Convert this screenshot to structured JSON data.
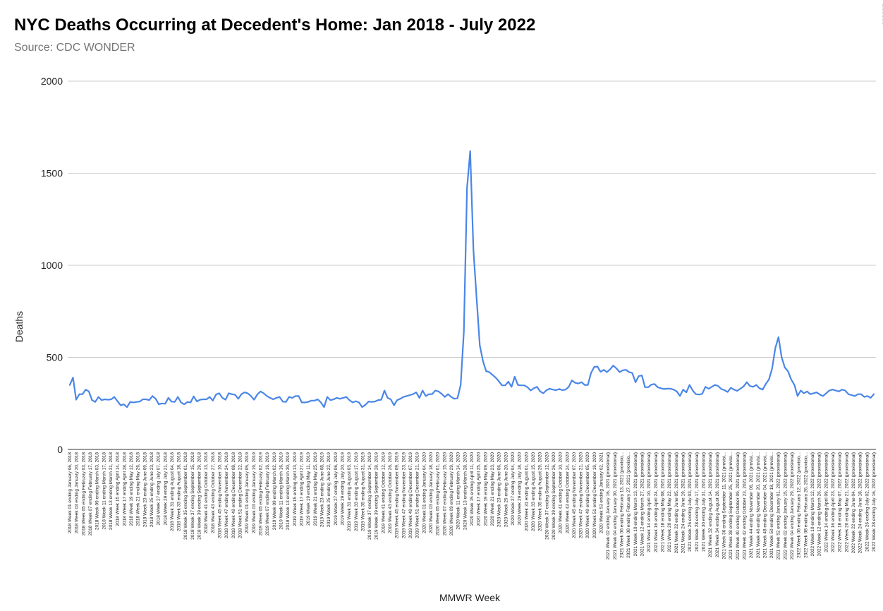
{
  "chart_data": {
    "type": "line",
    "title": "NYC Deaths Occurring at Decedent's Home: Jan 2018 - July 2022",
    "subtitle": "Source: CDC WONDER",
    "xlabel": "MMWR Week",
    "ylabel": "Deaths",
    "ylim": [
      0,
      2000
    ],
    "yticks": [
      0,
      500,
      1000,
      1500,
      2000
    ],
    "grid": true,
    "legend": "none",
    "line_color": "#4a86e8",
    "x_tick_labels": [
      "2018 Week 01 ending January 06, 2018",
      "2018 Week 03 ending January 20, 2018",
      "2018 Week 05 ending February 03, 2018",
      "2018 Week 07 ending February 17, 2018",
      "2018 Week 09 ending March 03, 2018",
      "2018 Week 11 ending March 17, 2018",
      "2018 Week 13 ending March 31, 2018",
      "2018 Week 15 ending April 14, 2018",
      "2018 Week 17 ending April 28, 2018",
      "2018 Week 19 ending May 12, 2018",
      "2018 Week 21 ending May 26, 2018",
      "2018 Week 23 ending June 09, 2018",
      "2018 Week 25 ending June 23, 2018",
      "2018 Week 27 ending July 07, 2018",
      "2018 Week 29 ending July 21, 2018",
      "2018 Week 31 ending August 04, 2018",
      "2018 Week 33 ending August 18, 2018",
      "2018 Week 35 ending September 01, 2018",
      "2018 Week 37 ending September 15, 2018",
      "2018 Week 39 ending September 29, 2018",
      "2018 Week 41 ending October 13, 2018",
      "2018 Week 43 ending October 27, 2018",
      "2018 Week 45 ending November 10, 2018",
      "2018 Week 47 ending November 24, 2018",
      "2018 Week 49 ending December 08, 2018",
      "2018 Week 51 ending December 22, 2018",
      "2019 Week 01 ending January 05, 2019",
      "2019 Week 03 ending January 19, 2019",
      "2019 Week 05 ending February 02, 2019",
      "2019 Week 07 ending February 16, 2019",
      "2019 Week 09 ending March 02, 2019",
      "2019 Week 11 ending March 16, 2019",
      "2019 Week 13 ending March 30, 2019",
      "2019 Week 15 ending April 13, 2019",
      "2019 Week 17 ending April 27, 2019",
      "2019 Week 19 ending May 11, 2019",
      "2019 Week 21 ending May 25, 2019",
      "2019 Week 23 ending June 08, 2019",
      "2019 Week 25 ending June 22, 2019",
      "2019 Week 27 ending July 06, 2019",
      "2019 Week 29 ending July 20, 2019",
      "2019 Week 31 ending August 03, 2019",
      "2019 Week 33 ending August 17, 2019",
      "2019 Week 35 ending August 31, 2019",
      "2019 Week 37 ending September 14, 2019",
      "2019 Week 39 ending September 28, 2019",
      "2019 Week 41 ending October 12, 2019",
      "2019 Week 43 ending October 26, 2019",
      "2019 Week 45 ending November 09, 2019",
      "2019 Week 47 ending November 23, 2019",
      "2019 Week 49 ending December 07, 2019",
      "2019 Week 51 ending December 21, 2019",
      "2020 Week 01 ending January 04, 2020",
      "2020 Week 03 ending January 18, 2020",
      "2020 Week 05 ending February 01, 2020",
      "2020 Week 07 ending February 15, 2020",
      "2020 Week 09 ending February 29, 2020",
      "2020 Week 11 ending March 14, 2020",
      "2020 Week 13 ending March 28, 2020",
      "2020 Week 15 ending April 11, 2020",
      "2020 Week 17 ending April 25, 2020",
      "2020 Week 19 ending May 09, 2020",
      "2020 Week 21 ending May 23, 2020",
      "2020 Week 23 ending June 06, 2020",
      "2020 Week 25 ending June 20, 2020",
      "2020 Week 27 ending July 04, 2020",
      "2020 Week 29 ending July 18, 2020",
      "2020 Week 31 ending August 01, 2020",
      "2020 Week 33 ending August 15, 2020",
      "2020 Week 35 ending August 29, 2020",
      "2020 Week 37 ending September 12, 2020",
      "2020 Week 39 ending September 26, 2020",
      "2020 Week 41 ending October 10, 2020",
      "2020 Week 43 ending October 24, 2020",
      "2020 Week 45 ending November 07, 2020",
      "2020 Week 47 ending November 21, 2020",
      "2020 Week 49 ending December 05, 2020",
      "2020 Week 51 ending December 19, 2020",
      "2020 Week 53 ending January 02, 2021",
      "2021 Week 02 ending January 16, 2021 (provisional)",
      "2021 Week 04 ending January 30, 2021 (provisional)",
      "2021 Week 06 ending February 13, 2021 (provisio...",
      "2021 Week 08 ending February 27, 2021 (provisio...",
      "2021 Week 10 ending March 13, 2021 (provisional)",
      "2021 Week 12 ending March 27, 2021 (provisional)",
      "2021 Week 14 ending April 10, 2021 (provisional)",
      "2021 Week 16 ending April 24, 2021 (provisional)",
      "2021 Week 18 ending May 08, 2021 (provisional)",
      "2021 Week 20 ending May 22, 2021 (provisional)",
      "2021 Week 22 ending June 05, 2021 (provisional)",
      "2021 Week 24 ending June 19, 2021 (provisional)",
      "2021 Week 26 ending July 03, 2021 (provisional)",
      "2021 Week 28 ending July 17, 2021 (provisional)",
      "2021 Week 30 ending July 31, 2021 (provisional)",
      "2021 Week 32 ending August 14, 2021 (provisional)",
      "2021 Week 34 ending August 28, 2021 (provisional)",
      "2021 Week 36 ending September 11, 2021 (provisi...",
      "2021 Week 38 ending September 25, 2021 (provisi...",
      "2021 Week 40 ending October 09, 2021 (provisional)",
      "2021 Week 42 ending October 23, 2021 (provisional)",
      "2021 Week 44 ending November 06, 2021 (provisi...",
      "2021 Week 46 ending November 20, 2021 (provisi...",
      "2021 Week 48 ending December 04, 2021 (provisi...",
      "2021 Week 50 ending December 18, 2021 (provisi...",
      "2021 Week 52 ending January 01, 2022 (provisional)",
      "2022 Week 02 ending January 15, 2022 (provisional)",
      "2022 Week 04 ending January 29, 2022 (provisional)",
      "2022 Week 06 ending February 12, 2022 (provisio...",
      "2022 Week 08 ending February 26, 2022 (provisio...",
      "2022 Week 10 ending March 12, 2022 (provisional)",
      "2022 Week 12 ending March 26, 2022 (provisional)",
      "2022 Week 14 ending April 09, 2022 (provisional)",
      "2022 Week 16 ending April 23, 2022 (provisional)",
      "2022 Week 18 ending May 07, 2022 (provisional)",
      "2022 Week 20 ending May 21, 2022 (provisional)",
      "2022 Week 22 ending June 04, 2022 (provisional)",
      "2022 Week 24 ending June 18, 2022 (provisional)",
      "2022 Week 26 ending July 02, 2022 (provisional)",
      "2022 Week 28 ending July 16, 2022 (provisional)"
    ],
    "series": [
      {
        "values": [
          350,
          390,
          270,
          300,
          300,
          325,
          315,
          268,
          258,
          285,
          268,
          272,
          270,
          272,
          285,
          262,
          240,
          245,
          230,
          258,
          255,
          258,
          260,
          272,
          272,
          268,
          290,
          275,
          245,
          250,
          248,
          280,
          260,
          258,
          285,
          255,
          245,
          258,
          255,
          288,
          260,
          270,
          272,
          272,
          285,
          265,
          298,
          305,
          280,
          270,
          305,
          300,
          297,
          275,
          300,
          310,
          305,
          290,
          270,
          298,
          315,
          305,
          290,
          280,
          272,
          280,
          285,
          260,
          258,
          285,
          280,
          290,
          290,
          255,
          255,
          258,
          265,
          265,
          272,
          255,
          230,
          285,
          268,
          272,
          280,
          275,
          280,
          285,
          268,
          255,
          262,
          255,
          230,
          242,
          260,
          258,
          260,
          268,
          270,
          320,
          280,
          272,
          240,
          268,
          275,
          285,
          290,
          295,
          300,
          310,
          280,
          320,
          290,
          300,
          300,
          320,
          315,
          302,
          285,
          300,
          285,
          275,
          278,
          350,
          640,
          1420,
          1620,
          1080,
          820,
          565,
          480,
          425,
          420,
          405,
          390,
          370,
          348,
          348,
          368,
          340,
          395,
          350,
          348,
          348,
          338,
          320,
          332,
          340,
          315,
          305,
          322,
          330,
          325,
          322,
          328,
          322,
          325,
          340,
          375,
          362,
          358,
          365,
          350,
          350,
          415,
          448,
          450,
          422,
          432,
          420,
          435,
          455,
          440,
          420,
          430,
          432,
          420,
          415,
          365,
          398,
          402,
          338,
          338,
          352,
          355,
          338,
          332,
          328,
          330,
          330,
          325,
          315,
          290,
          325,
          310,
          350,
          320,
          300,
          298,
          302,
          340,
          330,
          340,
          350,
          345,
          328,
          322,
          312,
          335,
          325,
          318,
          330,
          342,
          365,
          345,
          340,
          350,
          332,
          325,
          355,
          380,
          440,
          550,
          610,
          500,
          445,
          425,
          380,
          350,
          290,
          320,
          305,
          315,
          300,
          305,
          310,
          298,
          290,
          305,
          320,
          325,
          320,
          315,
          325,
          320,
          300,
          295,
          290,
          300,
          300,
          285,
          290,
          280,
          300
        ]
      }
    ]
  }
}
